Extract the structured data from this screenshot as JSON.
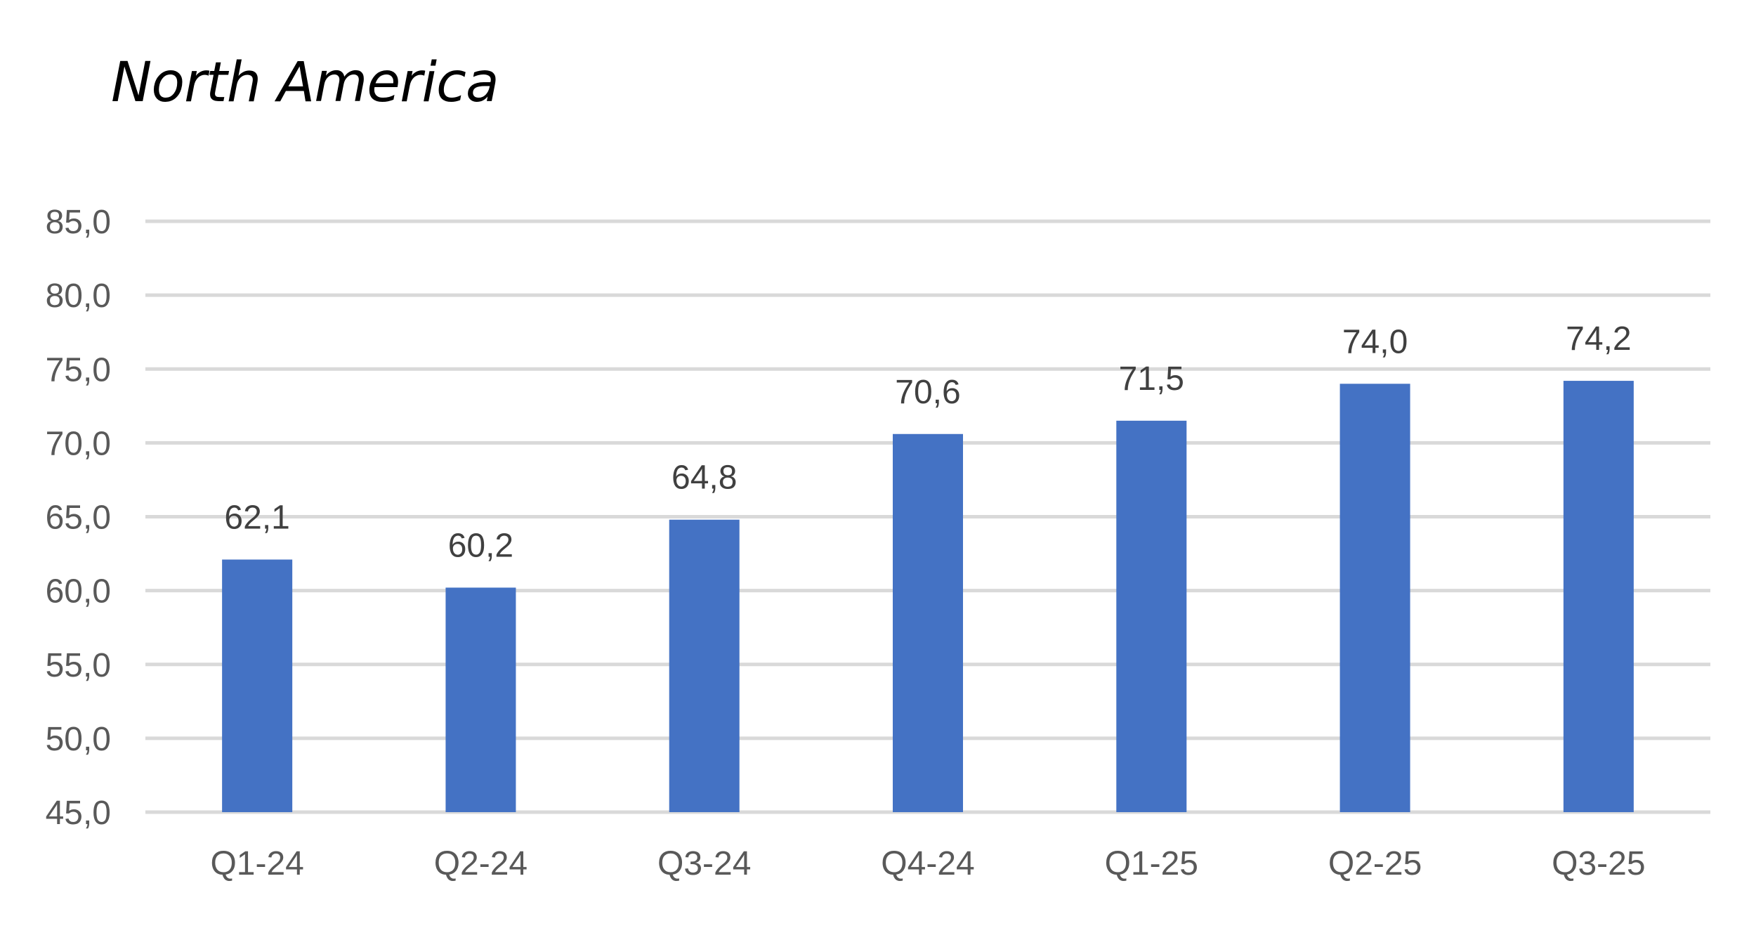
{
  "chart_data": {
    "type": "bar",
    "title": "North America",
    "categories": [
      "Q1-24",
      "Q2-24",
      "Q3-24",
      "Q4-24",
      "Q1-25",
      "Q2-25",
      "Q3-25"
    ],
    "values": [
      62.1,
      60.2,
      64.8,
      70.6,
      71.5,
      74.0,
      74.2
    ],
    "value_labels": [
      "62,1",
      "60,2",
      "64,8",
      "70,6",
      "71,5",
      "74,0",
      "74,2"
    ],
    "y_ticks": [
      45,
      50,
      55,
      60,
      65,
      70,
      75,
      80,
      85
    ],
    "y_tick_labels": [
      "45,0",
      "50,0",
      "55,0",
      "60,0",
      "65,0",
      "70,0",
      "75,0",
      "80,0",
      "85,0"
    ],
    "ylim": [
      45,
      85
    ],
    "xlabel": "",
    "ylabel": "",
    "grid": true,
    "legend": "none",
    "bar_color": "#4472c4"
  }
}
